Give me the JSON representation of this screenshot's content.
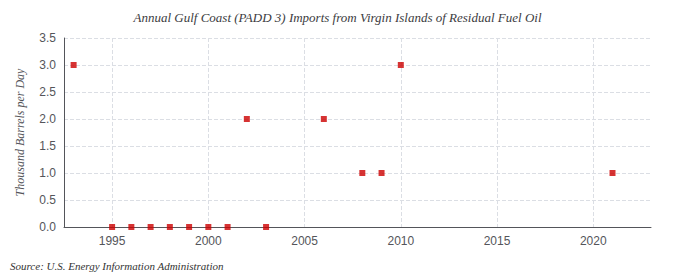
{
  "chart_data": {
    "type": "scatter",
    "title": "Annual Gulf Coast (PADD 3) Imports from Virgin Islands of Residual Fuel Oil",
    "ylabel": "Thousand Barrels per Day",
    "annotation": "Source: U.S. Energy Information Administration",
    "x": [
      1993,
      1995,
      1996,
      1997,
      1998,
      1999,
      2000,
      2001,
      2002,
      2003,
      2006,
      2008,
      2009,
      2010,
      2021
    ],
    "values": [
      3.0,
      0.0,
      0.0,
      0.0,
      0.0,
      0.0,
      0.0,
      0.0,
      2.0,
      0.0,
      2.0,
      1.0,
      1.0,
      3.0,
      1.0
    ],
    "color": "#cc0000",
    "marker": "square",
    "xlim": [
      1992.5,
      2023
    ],
    "xticks": [
      1995,
      2000,
      2005,
      2010,
      2015,
      2020
    ],
    "ylim": [
      0,
      3.5
    ],
    "yticks": [
      {
        "value": 0,
        "label": "0.0"
      },
      0.5,
      {
        "value": 1,
        "label": "1.0"
      },
      1.5,
      {
        "value": 2,
        "label": "2.0"
      },
      2.5,
      {
        "value": 3,
        "label": "3.0"
      },
      3.5
    ],
    "grid": true
  }
}
